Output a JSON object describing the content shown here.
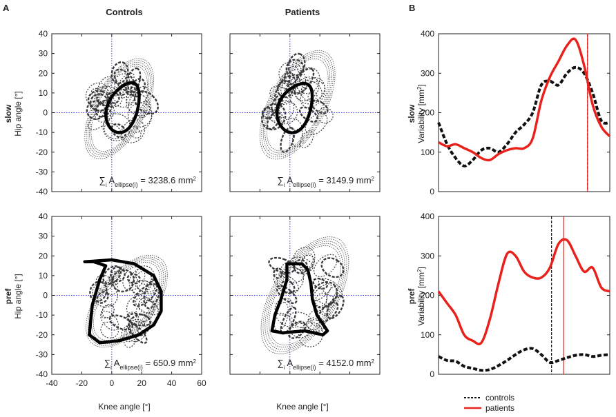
{
  "panel_labels": {
    "a": "A",
    "b": "B"
  },
  "column_titles": {
    "controls": "Controls",
    "patients": "Patients"
  },
  "row_labels": {
    "slow": {
      "bold": "slow",
      "axis": "Hip angle [°]"
    },
    "pref": {
      "bold": "pref",
      "axis": "Hip angle [°]"
    }
  },
  "b_row_labels": {
    "slow": {
      "bold": "slow",
      "axis_pre": "Variability [mm",
      "axis_sup": "2",
      "axis_post": "]"
    },
    "pref": {
      "bold": "pref",
      "axis_pre": "Variability [mm",
      "axis_sup": "2",
      "axis_post": "]"
    }
  },
  "xaxis_label": "Knee angle [°]",
  "colors": {
    "controls": "#111111",
    "patients": "#e8211c",
    "crosshair": "#3a3ae8",
    "ellipse": "#3a3a3a"
  },
  "legend": {
    "controls": "controls",
    "patients": "patients"
  },
  "chart_data": [
    {
      "id": "slow_controls",
      "type": "scatter",
      "title": "Controls",
      "xlabel": "",
      "ylabel": "Hip angle [°]",
      "xlim": [
        -40,
        60
      ],
      "ylim": [
        -40,
        40
      ],
      "xticks": [],
      "yticks": [
        -40,
        -30,
        -20,
        -10,
        0,
        10,
        20,
        30,
        40
      ],
      "annotation": {
        "sum": "∑",
        "sub": "i",
        "A": "A",
        "sub2": "ellipse(i)",
        "value": " = 3238.6 mm",
        "sup": "2"
      },
      "mean_loop": {
        "cx": 8,
        "cy": 3,
        "rx": 14,
        "ry": 17,
        "rot": 55,
        "skew": 0.35
      },
      "cloud": {
        "cx": 5,
        "cy": 2,
        "rx": 22,
        "ry": 24
      }
    },
    {
      "id": "slow_patients",
      "type": "scatter",
      "title": "Patients",
      "xlabel": "",
      "ylabel": "",
      "xlim": [
        -40,
        60
      ],
      "ylim": [
        -40,
        40
      ],
      "xticks": [],
      "yticks": [],
      "annotation": {
        "sum": "∑",
        "sub": "i",
        "A": "A",
        "sub2": "ellipse(i)",
        "value": " = 3149.9 mm",
        "sup": "2"
      },
      "mean_loop": {
        "cx": 4,
        "cy": 3,
        "rx": 14,
        "ry": 18,
        "rot": 50,
        "skew": 0.4
      },
      "cloud": {
        "cx": 5,
        "cy": 4,
        "rx": 24,
        "ry": 26
      }
    },
    {
      "id": "pref_controls",
      "type": "scatter",
      "title": "",
      "xlabel": "Knee angle [°]",
      "ylabel": "Hip angle [°]",
      "xlim": [
        -40,
        60
      ],
      "ylim": [
        -40,
        40
      ],
      "xticks": [
        -40,
        -20,
        0,
        20,
        40,
        60
      ],
      "yticks": [
        -40,
        -30,
        -20,
        -10,
        0,
        10,
        20,
        30,
        40
      ],
      "annotation": {
        "sum": "∑",
        "sub": "i",
        "A": "A",
        "sub2": "ellipse(i)",
        "value": " = 650.9 mm",
        "sup": "2"
      },
      "mean_loop": "D",
      "cloud": {
        "cx": 10,
        "cy": -3,
        "rx": 26,
        "ry": 22
      }
    },
    {
      "id": "pref_patients",
      "type": "scatter",
      "title": "",
      "xlabel": "Knee angle [°]",
      "ylabel": "",
      "xlim": [
        -40,
        60
      ],
      "ylim": [
        -40,
        40
      ],
      "xticks": [],
      "yticks": [],
      "annotation": {
        "sum": "∑",
        "sub": "i",
        "A": "A",
        "sub2": "ellipse(i)",
        "value": " = 4152.0 mm",
        "sup": "2"
      },
      "mean_loop": "Dp",
      "cloud": {
        "cx": 10,
        "cy": 0,
        "rx": 28,
        "ry": 28
      }
    },
    {
      "id": "slow_variability",
      "type": "line",
      "ylabel": "Variability [mm2]",
      "ylim": [
        0,
        400
      ],
      "yticks": [
        0,
        100,
        200,
        300,
        400
      ],
      "x": [
        0,
        5,
        10,
        15,
        20,
        25,
        30,
        35,
        40,
        45,
        50,
        55,
        60,
        65,
        70,
        75,
        80,
        85,
        90,
        95,
        100
      ],
      "series": [
        {
          "name": "controls",
          "style": "dashed",
          "values": [
            175,
            120,
            85,
            65,
            80,
            105,
            110,
            100,
            120,
            150,
            170,
            200,
            270,
            280,
            270,
            300,
            315,
            300,
            250,
            180,
            175
          ]
        },
        {
          "name": "patients",
          "style": "solid",
          "values": [
            125,
            115,
            120,
            110,
            100,
            85,
            80,
            95,
            105,
            110,
            110,
            135,
            230,
            290,
            330,
            370,
            385,
            320,
            220,
            165,
            140
          ]
        }
      ],
      "vlines": [
        {
          "series": "controls",
          "x": 87
        },
        {
          "series": "patients",
          "x": 87
        }
      ]
    },
    {
      "id": "pref_variability",
      "type": "line",
      "ylabel": "Variability [mm2]",
      "ylim": [
        0,
        400
      ],
      "yticks": [
        0,
        100,
        200,
        300,
        400
      ],
      "x": [
        0,
        5,
        10,
        15,
        20,
        25,
        30,
        35,
        40,
        45,
        50,
        55,
        60,
        65,
        70,
        75,
        80,
        85,
        90,
        95,
        100
      ],
      "series": [
        {
          "name": "controls",
          "style": "dashed",
          "values": [
            45,
            35,
            33,
            20,
            15,
            10,
            12,
            22,
            35,
            50,
            62,
            65,
            50,
            30,
            35,
            42,
            48,
            50,
            45,
            48,
            50
          ]
        },
        {
          "name": "patients",
          "style": "solid",
          "values": [
            210,
            180,
            150,
            100,
            85,
            80,
            140,
            230,
            305,
            300,
            260,
            245,
            245,
            270,
            330,
            340,
            300,
            260,
            270,
            220,
            210
          ]
        }
      ],
      "vlines": [
        {
          "series": "controls",
          "x": 66
        },
        {
          "series": "patients",
          "x": 73
        }
      ]
    }
  ]
}
